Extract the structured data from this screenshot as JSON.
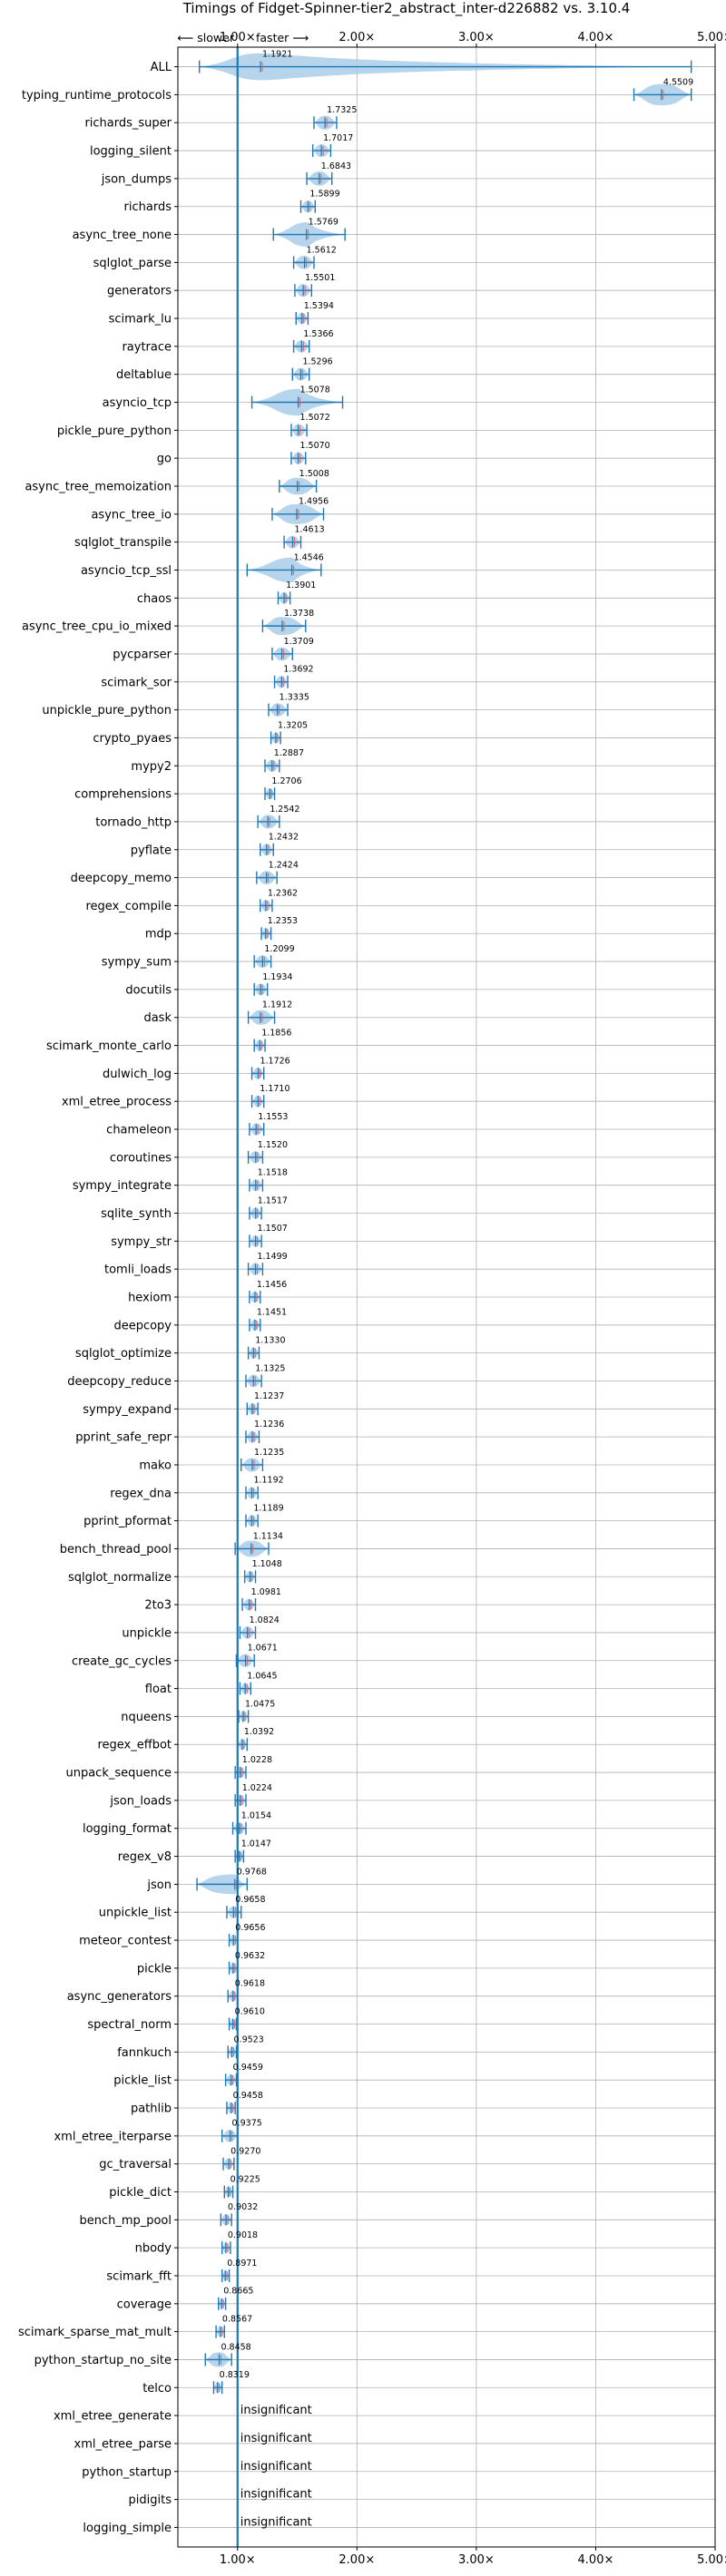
{
  "chart_data": {
    "type": "violin",
    "title": "Timings of Fidget-Spinner-tier2_abstract_inter-d226882 vs. 3.10.4",
    "direction_left": "⟵ slower",
    "direction_right": "faster ⟶",
    "xlim": [
      0.5,
      5.0
    ],
    "xticks": [
      1,
      2,
      3,
      4,
      5
    ],
    "xtick_labels": [
      "1.00×",
      "2.00×",
      "3.00×",
      "4.00×",
      "5.00×"
    ],
    "reference_line": 1.0,
    "grid": true,
    "insignificant_label": "insignificant",
    "colors": {
      "violin": "#a9cce8",
      "line": "#1f77b4",
      "median": "#e06060",
      "grid": "#b0b0b0"
    },
    "benchmarks": [
      {
        "name": "ALL",
        "value": 1.1921,
        "low": 0.68,
        "high": 4.8
      },
      {
        "name": "typing_runtime_protocols",
        "value": 4.5509,
        "low": 4.32,
        "high": 4.8
      },
      {
        "name": "richards_super",
        "value": 1.7325,
        "low": 1.64,
        "high": 1.83
      },
      {
        "name": "logging_silent",
        "value": 1.7017,
        "low": 1.63,
        "high": 1.78
      },
      {
        "name": "json_dumps",
        "value": 1.6843,
        "low": 1.58,
        "high": 1.79
      },
      {
        "name": "richards",
        "value": 1.5899,
        "low": 1.53,
        "high": 1.65
      },
      {
        "name": "async_tree_none",
        "value": 1.5769,
        "low": 1.3,
        "high": 1.9
      },
      {
        "name": "sqlglot_parse",
        "value": 1.5612,
        "low": 1.47,
        "high": 1.64
      },
      {
        "name": "generators",
        "value": 1.5501,
        "low": 1.48,
        "high": 1.62
      },
      {
        "name": "scimark_lu",
        "value": 1.5394,
        "low": 1.49,
        "high": 1.59
      },
      {
        "name": "raytrace",
        "value": 1.5366,
        "low": 1.47,
        "high": 1.6
      },
      {
        "name": "deltablue",
        "value": 1.5296,
        "low": 1.46,
        "high": 1.6
      },
      {
        "name": "asyncio_tcp",
        "value": 1.5078,
        "low": 1.12,
        "high": 1.88
      },
      {
        "name": "pickle_pure_python",
        "value": 1.5072,
        "low": 1.45,
        "high": 1.58
      },
      {
        "name": "go",
        "value": 1.507,
        "low": 1.45,
        "high": 1.57
      },
      {
        "name": "async_tree_memoization",
        "value": 1.5008,
        "low": 1.35,
        "high": 1.66
      },
      {
        "name": "async_tree_io",
        "value": 1.4956,
        "low": 1.29,
        "high": 1.72
      },
      {
        "name": "sqlglot_transpile",
        "value": 1.4613,
        "low": 1.39,
        "high": 1.53
      },
      {
        "name": "asyncio_tcp_ssl",
        "value": 1.4546,
        "low": 1.08,
        "high": 1.7
      },
      {
        "name": "chaos",
        "value": 1.3901,
        "low": 1.34,
        "high": 1.44
      },
      {
        "name": "async_tree_cpu_io_mixed",
        "value": 1.3738,
        "low": 1.21,
        "high": 1.57
      },
      {
        "name": "pycparser",
        "value": 1.3709,
        "low": 1.29,
        "high": 1.46
      },
      {
        "name": "scimark_sor",
        "value": 1.3692,
        "low": 1.31,
        "high": 1.42
      },
      {
        "name": "unpickle_pure_python",
        "value": 1.3335,
        "low": 1.26,
        "high": 1.42
      },
      {
        "name": "crypto_pyaes",
        "value": 1.3205,
        "low": 1.28,
        "high": 1.36
      },
      {
        "name": "mypy2",
        "value": 1.2887,
        "low": 1.23,
        "high": 1.35
      },
      {
        "name": "comprehensions",
        "value": 1.2706,
        "low": 1.23,
        "high": 1.31
      },
      {
        "name": "tornado_http",
        "value": 1.2542,
        "low": 1.17,
        "high": 1.35
      },
      {
        "name": "pyflate",
        "value": 1.2432,
        "low": 1.19,
        "high": 1.3
      },
      {
        "name": "deepcopy_memo",
        "value": 1.2424,
        "low": 1.16,
        "high": 1.33
      },
      {
        "name": "regex_compile",
        "value": 1.2362,
        "low": 1.19,
        "high": 1.29
      },
      {
        "name": "mdp",
        "value": 1.2353,
        "low": 1.2,
        "high": 1.28
      },
      {
        "name": "sympy_sum",
        "value": 1.2099,
        "low": 1.14,
        "high": 1.28
      },
      {
        "name": "docutils",
        "value": 1.1934,
        "low": 1.14,
        "high": 1.25
      },
      {
        "name": "dask",
        "value": 1.1912,
        "low": 1.09,
        "high": 1.31
      },
      {
        "name": "scimark_monte_carlo",
        "value": 1.1856,
        "low": 1.14,
        "high": 1.23
      },
      {
        "name": "dulwich_log",
        "value": 1.1726,
        "low": 1.12,
        "high": 1.22
      },
      {
        "name": "xml_etree_process",
        "value": 1.171,
        "low": 1.12,
        "high": 1.22
      },
      {
        "name": "chameleon",
        "value": 1.1553,
        "low": 1.1,
        "high": 1.22
      },
      {
        "name": "coroutines",
        "value": 1.152,
        "low": 1.09,
        "high": 1.21
      },
      {
        "name": "sympy_integrate",
        "value": 1.1518,
        "low": 1.1,
        "high": 1.21
      },
      {
        "name": "sqlite_synth",
        "value": 1.1517,
        "low": 1.1,
        "high": 1.2
      },
      {
        "name": "sympy_str",
        "value": 1.1507,
        "low": 1.1,
        "high": 1.2
      },
      {
        "name": "tomli_loads",
        "value": 1.1499,
        "low": 1.09,
        "high": 1.21
      },
      {
        "name": "hexiom",
        "value": 1.1456,
        "low": 1.1,
        "high": 1.19
      },
      {
        "name": "deepcopy",
        "value": 1.1451,
        "low": 1.1,
        "high": 1.19
      },
      {
        "name": "sqlglot_optimize",
        "value": 1.133,
        "low": 1.09,
        "high": 1.18
      },
      {
        "name": "deepcopy_reduce",
        "value": 1.1325,
        "low": 1.07,
        "high": 1.2
      },
      {
        "name": "sympy_expand",
        "value": 1.1237,
        "low": 1.08,
        "high": 1.17
      },
      {
        "name": "pprint_safe_repr",
        "value": 1.1236,
        "low": 1.07,
        "high": 1.18
      },
      {
        "name": "mako",
        "value": 1.1235,
        "low": 1.03,
        "high": 1.21
      },
      {
        "name": "regex_dna",
        "value": 1.1192,
        "low": 1.07,
        "high": 1.17
      },
      {
        "name": "pprint_pformat",
        "value": 1.1189,
        "low": 1.07,
        "high": 1.17
      },
      {
        "name": "bench_thread_pool",
        "value": 1.1134,
        "low": 0.98,
        "high": 1.26
      },
      {
        "name": "sqlglot_normalize",
        "value": 1.1048,
        "low": 1.06,
        "high": 1.15
      },
      {
        "name": "2to3",
        "value": 1.0981,
        "low": 1.04,
        "high": 1.15
      },
      {
        "name": "unpickle",
        "value": 1.0824,
        "low": 1.02,
        "high": 1.15
      },
      {
        "name": "create_gc_cycles",
        "value": 1.0671,
        "low": 0.99,
        "high": 1.14
      },
      {
        "name": "float",
        "value": 1.0645,
        "low": 1.02,
        "high": 1.11
      },
      {
        "name": "nqueens",
        "value": 1.0475,
        "low": 1.01,
        "high": 1.09
      },
      {
        "name": "regex_effbot",
        "value": 1.0392,
        "low": 1.0,
        "high": 1.08
      },
      {
        "name": "unpack_sequence",
        "value": 1.0228,
        "low": 0.98,
        "high": 1.07
      },
      {
        "name": "json_loads",
        "value": 1.0224,
        "low": 0.98,
        "high": 1.07
      },
      {
        "name": "logging_format",
        "value": 1.0154,
        "low": 0.96,
        "high": 1.07
      },
      {
        "name": "regex_v8",
        "value": 1.0147,
        "low": 0.98,
        "high": 1.05
      },
      {
        "name": "json",
        "value": 0.9768,
        "low": 0.66,
        "high": 1.08
      },
      {
        "name": "unpickle_list",
        "value": 0.9658,
        "low": 0.91,
        "high": 1.03
      },
      {
        "name": "meteor_contest",
        "value": 0.9656,
        "low": 0.93,
        "high": 1.0
      },
      {
        "name": "pickle",
        "value": 0.9632,
        "low": 0.93,
        "high": 1.0
      },
      {
        "name": "async_generators",
        "value": 0.9618,
        "low": 0.92,
        "high": 1.0
      },
      {
        "name": "spectral_norm",
        "value": 0.961,
        "low": 0.93,
        "high": 0.99
      },
      {
        "name": "fannkuch",
        "value": 0.9523,
        "low": 0.92,
        "high": 0.99
      },
      {
        "name": "pickle_list",
        "value": 0.9459,
        "low": 0.9,
        "high": 0.99
      },
      {
        "name": "pathlib",
        "value": 0.9458,
        "low": 0.91,
        "high": 0.98
      },
      {
        "name": "xml_etree_iterparse",
        "value": 0.9375,
        "low": 0.87,
        "high": 1.0
      },
      {
        "name": "gc_traversal",
        "value": 0.927,
        "low": 0.88,
        "high": 0.97
      },
      {
        "name": "pickle_dict",
        "value": 0.9225,
        "low": 0.89,
        "high": 0.96
      },
      {
        "name": "bench_mp_pool",
        "value": 0.9032,
        "low": 0.86,
        "high": 0.95
      },
      {
        "name": "nbody",
        "value": 0.9018,
        "low": 0.87,
        "high": 0.94
      },
      {
        "name": "scimark_fft",
        "value": 0.8971,
        "low": 0.87,
        "high": 0.93
      },
      {
        "name": "coverage",
        "value": 0.8665,
        "low": 0.84,
        "high": 0.9
      },
      {
        "name": "scimark_sparse_mat_mult",
        "value": 0.8567,
        "low": 0.82,
        "high": 0.89
      },
      {
        "name": "python_startup_no_site",
        "value": 0.8458,
        "low": 0.73,
        "high": 0.95
      },
      {
        "name": "telco",
        "value": 0.8319,
        "low": 0.8,
        "high": 0.87
      },
      {
        "name": "xml_etree_generate",
        "value": null
      },
      {
        "name": "xml_etree_parse",
        "value": null
      },
      {
        "name": "python_startup",
        "value": null
      },
      {
        "name": "pidigits",
        "value": null
      },
      {
        "name": "logging_simple",
        "value": null
      }
    ]
  }
}
